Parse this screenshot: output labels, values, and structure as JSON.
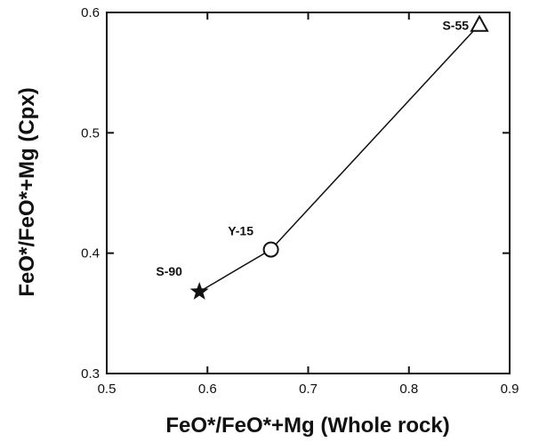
{
  "chart_data": {
    "type": "line",
    "xlabel": "FeO*/FeO*+Mg  (Whole rock)",
    "ylabel": "FeO*/FeO*+Mg (Cpx)",
    "xlim": [
      0.5,
      0.9
    ],
    "ylim": [
      0.3,
      0.6
    ],
    "x_ticks": [
      0.5,
      0.6,
      0.7,
      0.8,
      0.9
    ],
    "y_ticks": [
      0.3,
      0.4,
      0.5,
      0.6
    ],
    "x_tick_labels": [
      "0.5",
      "0.6",
      "0.7",
      "0.8",
      "0.9"
    ],
    "y_tick_labels": [
      "0.3",
      "0.4",
      "0.5",
      "0.6"
    ],
    "grid": false,
    "series": [
      {
        "points": [
          {
            "label": "S-90",
            "x": 0.592,
            "y": 0.368,
            "marker": "star"
          },
          {
            "label": "Y-15",
            "x": 0.663,
            "y": 0.403,
            "marker": "circle"
          },
          {
            "label": "S-55",
            "x": 0.87,
            "y": 0.59,
            "marker": "triangle"
          }
        ]
      }
    ]
  }
}
